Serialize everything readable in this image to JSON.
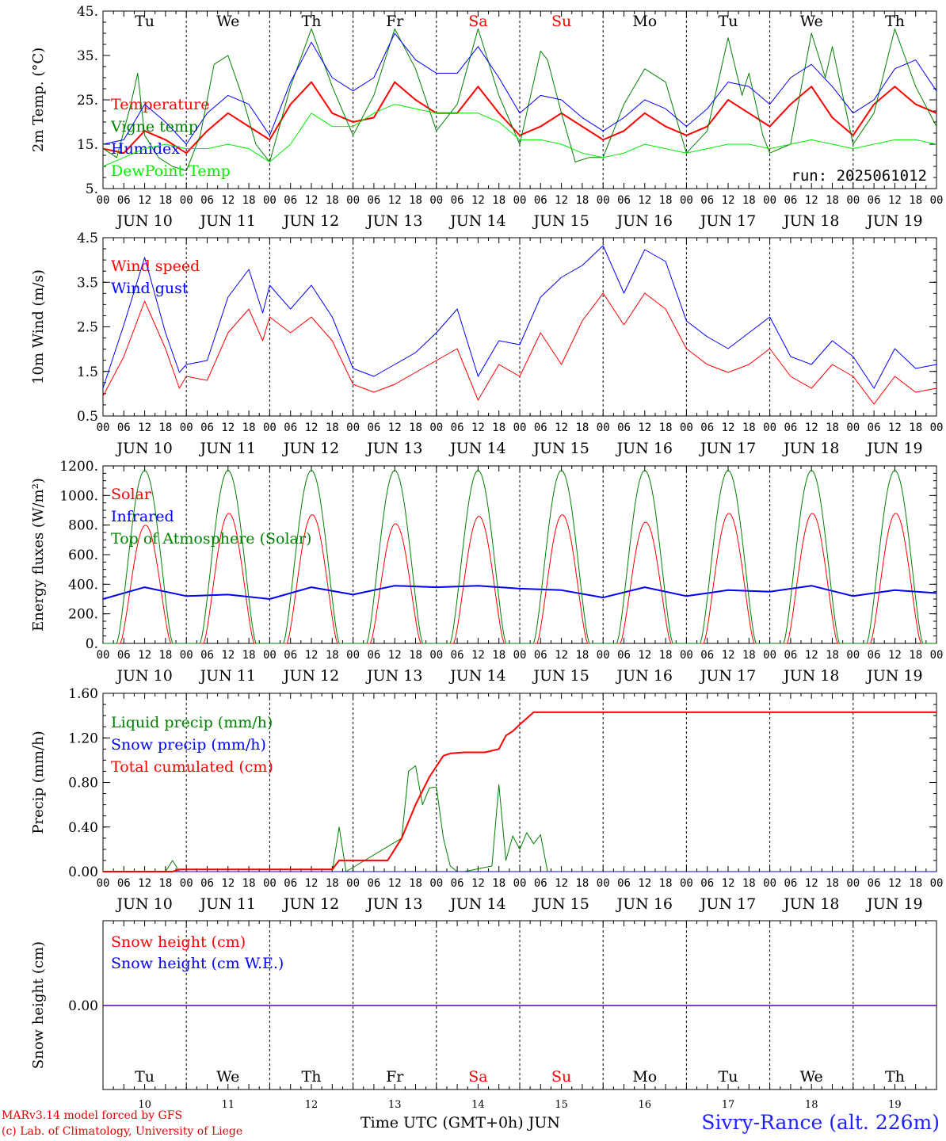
{
  "run_label": "run: 2025061012",
  "day_labels": [
    "Tu",
    "We",
    "Th",
    "Fr",
    "Sa",
    "Su",
    "Mo",
    "Tu",
    "We",
    "Th"
  ],
  "weekend_color": "#ff0000",
  "date_labels": [
    "JUN 10",
    "JUN 11",
    "JUN 12",
    "JUN 13",
    "JUN 14",
    "JUN 15",
    "JUN 16",
    "JUN 17",
    "JUN 18",
    "JUN 19"
  ],
  "hour_ticks": [
    "00",
    "06",
    "12",
    "18"
  ],
  "last_hour_tick": "00",
  "bottom_day_numbers": [
    "10",
    "11",
    "12",
    "13",
    "14",
    "15",
    "16",
    "17",
    "18",
    "19"
  ],
  "footer": {
    "model_line": "MARv3.14 model forced by GFS",
    "lab_line": "(c) Lab. of Climatology, University of Liege",
    "time_axis": "Time UTC (GMT+0h) JUN",
    "station": "Sivry-Rance (alt. 226m)"
  },
  "chart_data": [
    {
      "id": "temperature",
      "type": "line",
      "ylabel": "2m Temp. (°C)",
      "ylim": [
        5,
        45
      ],
      "yticks": [
        "5.",
        "15.",
        "25.",
        "35.",
        "45."
      ],
      "x_unit": "hours since 2025-06-10 00 UTC",
      "series": [
        {
          "name": "Temperature",
          "color": "#ff0000",
          "width": 2,
          "x": [
            0,
            6,
            12,
            18,
            24,
            30,
            36,
            42,
            48,
            54,
            60,
            66,
            72,
            78,
            84,
            90,
            96,
            102,
            108,
            114,
            120,
            126,
            132,
            138,
            144,
            150,
            156,
            162,
            168,
            174,
            180,
            186,
            192,
            198,
            204,
            210,
            216,
            222,
            228,
            234,
            240
          ],
          "values": [
            14,
            13,
            18,
            16,
            13,
            18,
            22,
            19,
            16,
            24,
            29,
            22,
            20,
            21,
            29,
            25,
            22,
            22,
            28,
            22,
            17,
            19,
            22,
            19,
            16,
            18,
            22,
            19,
            17,
            19,
            25,
            22,
            19,
            24,
            28,
            21,
            17,
            24,
            28,
            24,
            22
          ]
        },
        {
          "name": "Vigne temp",
          "color": "#008000",
          "width": 1,
          "x": [
            0,
            4,
            8,
            10,
            12,
            16,
            20,
            24,
            28,
            32,
            36,
            40,
            44,
            48,
            54,
            60,
            66,
            72,
            78,
            84,
            90,
            96,
            102,
            108,
            114,
            120,
            126,
            128,
            132,
            136,
            140,
            144,
            150,
            156,
            162,
            168,
            174,
            180,
            184,
            186,
            190,
            192,
            198,
            204,
            208,
            210,
            216,
            222,
            228,
            234,
            240
          ],
          "values": [
            14,
            12,
            24,
            31,
            17,
            12,
            10,
            9,
            17,
            33,
            35,
            26,
            15,
            11,
            28,
            41,
            28,
            17,
            26,
            41,
            32,
            18,
            24,
            41,
            26,
            15,
            36,
            34,
            22,
            11,
            12,
            12,
            24,
            32,
            29,
            13,
            18,
            39,
            26,
            31,
            17,
            13,
            15,
            40,
            30,
            37,
            15,
            22,
            41,
            28,
            19
          ]
        },
        {
          "name": "Humidex",
          "color": "#0000ff",
          "width": 1,
          "x": [
            0,
            6,
            12,
            18,
            24,
            30,
            36,
            42,
            48,
            54,
            60,
            66,
            72,
            78,
            84,
            90,
            96,
            102,
            108,
            114,
            120,
            126,
            132,
            138,
            144,
            150,
            156,
            162,
            168,
            174,
            180,
            186,
            192,
            198,
            204,
            210,
            216,
            222,
            228,
            234,
            240
          ],
          "values": [
            15,
            16,
            24,
            20,
            15,
            22,
            26,
            24,
            17,
            29,
            38,
            30,
            27,
            30,
            40,
            34,
            31,
            31,
            37,
            30,
            22,
            26,
            25,
            21,
            18,
            21,
            25,
            23,
            19,
            23,
            29,
            28,
            24,
            30,
            33,
            28,
            22,
            25,
            32,
            34,
            27
          ]
        },
        {
          "name": "DewPoint Temp",
          "color": "#00ee00",
          "width": 1,
          "x": [
            0,
            6,
            12,
            18,
            24,
            30,
            36,
            42,
            48,
            54,
            60,
            66,
            72,
            78,
            84,
            90,
            96,
            102,
            108,
            114,
            120,
            126,
            132,
            138,
            144,
            150,
            156,
            162,
            168,
            174,
            180,
            186,
            192,
            198,
            204,
            210,
            216,
            222,
            228,
            234,
            240
          ],
          "values": [
            10,
            12,
            14,
            15,
            14,
            14,
            15,
            14,
            11,
            15,
            22,
            19,
            19,
            22,
            24,
            23,
            22,
            22,
            22,
            20,
            16,
            16,
            15,
            13,
            12,
            13,
            15,
            14,
            13,
            14,
            15,
            15,
            14,
            15,
            16,
            15,
            14,
            15,
            16,
            16,
            15
          ]
        }
      ]
    },
    {
      "id": "wind",
      "type": "line",
      "ylabel": "10m Wind (m/s)",
      "ylim": [
        0.5,
        5
      ],
      "yticks": [
        "0.5",
        "1.5",
        "2.5",
        "3.5",
        "4.5"
      ],
      "x_unit": "hours since 2025-06-10 00 UTC",
      "series": [
        {
          "name": "Wind speed",
          "color": "#ff0000",
          "width": 1,
          "x": [
            0,
            6,
            12,
            18,
            22,
            24,
            30,
            36,
            42,
            46,
            48,
            54,
            60,
            66,
            72,
            78,
            84,
            90,
            96,
            102,
            108,
            114,
            120,
            126,
            132,
            138,
            144,
            150,
            156,
            162,
            168,
            174,
            180,
            186,
            192,
            198,
            204,
            210,
            216,
            222,
            228,
            234,
            240
          ],
          "values": [
            1.0,
            2.0,
            3.4,
            2.2,
            1.2,
            1.5,
            1.4,
            2.6,
            3.2,
            2.4,
            3.0,
            2.6,
            3.0,
            2.4,
            1.3,
            1.1,
            1.3,
            1.6,
            1.9,
            2.2,
            0.9,
            1.8,
            1.5,
            2.6,
            1.8,
            2.9,
            3.6,
            2.8,
            3.6,
            3.2,
            2.2,
            1.8,
            1.6,
            1.8,
            2.2,
            1.5,
            1.2,
            1.8,
            1.5,
            0.8,
            1.5,
            1.1,
            1.2
          ]
        },
        {
          "name": "Wind gust",
          "color": "#0000ff",
          "width": 1,
          "x": [
            0,
            6,
            12,
            18,
            22,
            24,
            30,
            36,
            42,
            46,
            48,
            54,
            60,
            66,
            72,
            78,
            84,
            90,
            96,
            102,
            108,
            114,
            120,
            126,
            132,
            138,
            144,
            150,
            156,
            162,
            168,
            174,
            180,
            186,
            192,
            198,
            204,
            210,
            216,
            222,
            228,
            234,
            240
          ],
          "values": [
            1.2,
            2.8,
            4.5,
            2.6,
            1.6,
            1.8,
            1.9,
            3.5,
            4.2,
            3.1,
            3.8,
            3.2,
            3.8,
            3.0,
            1.7,
            1.5,
            1.8,
            2.1,
            2.6,
            3.2,
            1.5,
            2.4,
            2.3,
            3.5,
            4.0,
            4.3,
            4.8,
            3.6,
            4.7,
            4.4,
            2.9,
            2.5,
            2.2,
            2.6,
            3.0,
            2.0,
            1.8,
            2.4,
            2.0,
            1.2,
            2.2,
            1.7,
            1.8
          ]
        }
      ]
    },
    {
      "id": "energy",
      "type": "line",
      "ylabel": "Energy fluxes (W/m²)",
      "ylim": [
        0,
        1200
      ],
      "yticks": [
        "0.",
        "200.",
        "400.",
        "600.",
        "800.",
        "1000.",
        "1200."
      ],
      "x_unit": "hours since 2025-06-10 00 UTC",
      "series": [
        {
          "name": "Solar",
          "color": "#ff0000",
          "width": 1,
          "kind": "solar",
          "peaks": [
            800,
            880,
            870,
            810,
            860,
            870,
            820,
            880,
            880,
            880
          ]
        },
        {
          "name": "Infrared",
          "color": "#0000ff",
          "width": 2,
          "x": [
            0,
            12,
            24,
            36,
            48,
            60,
            72,
            84,
            96,
            108,
            120,
            132,
            144,
            156,
            168,
            180,
            192,
            204,
            216,
            228,
            240
          ],
          "values": [
            300,
            380,
            320,
            330,
            300,
            380,
            330,
            390,
            380,
            390,
            370,
            360,
            310,
            380,
            320,
            360,
            350,
            390,
            320,
            360,
            340
          ]
        },
        {
          "name": "Top of Atmosphere (Solar)",
          "color": "#008000",
          "width": 1,
          "kind": "toa",
          "peaks": [
            1170,
            1170,
            1170,
            1170,
            1170,
            1170,
            1170,
            1170,
            1170,
            1170
          ]
        }
      ]
    },
    {
      "id": "precip",
      "type": "line",
      "ylabel": "Precip (mm/h)",
      "ylim": [
        0,
        1.6
      ],
      "yticks": [
        "0.00",
        "0.40",
        "0.80",
        "1.20",
        "1.60"
      ],
      "x_unit": "hours since 2025-06-10 00 UTC",
      "series": [
        {
          "name": "Liquid precip (mm/h)",
          "color": "#008000",
          "width": 1,
          "x": [
            0,
            18,
            20,
            22,
            66,
            68,
            70,
            86,
            88,
            90,
            92,
            94,
            96,
            98,
            100,
            102,
            104,
            112,
            114,
            116,
            118,
            120,
            122,
            124,
            126,
            128,
            130,
            132,
            134,
            136,
            138,
            140,
            142,
            240
          ],
          "values": [
            0,
            0,
            0.1,
            0,
            0,
            0.4,
            0,
            0.3,
            0.9,
            0.95,
            0.6,
            0.75,
            0.76,
            0.3,
            0.05,
            0,
            0,
            0.05,
            0.78,
            0.1,
            0.32,
            0.2,
            0.35,
            0.25,
            0.33,
            0,
            0,
            0,
            0,
            0,
            0,
            0,
            0,
            0
          ]
        },
        {
          "name": "Snow precip (mm/h)",
          "color": "#0000ff",
          "width": 1,
          "x": [
            0,
            240
          ],
          "values": [
            0,
            0
          ]
        },
        {
          "name": "Total cumulated (cm)",
          "color": "#ff0000",
          "width": 2,
          "x": [
            0,
            20,
            22,
            66,
            68,
            70,
            82,
            86,
            90,
            94,
            98,
            100,
            104,
            110,
            114,
            116,
            118,
            120,
            124,
            240
          ],
          "values": [
            0,
            0,
            0.02,
            0.02,
            0.1,
            0.1,
            0.1,
            0.3,
            0.6,
            0.85,
            1.04,
            1.06,
            1.07,
            1.07,
            1.1,
            1.22,
            1.26,
            1.32,
            1.43,
            1.43
          ]
        }
      ]
    },
    {
      "id": "snow",
      "type": "line",
      "ylabel": "Snow height (cm)",
      "ylim": [
        -1,
        1
      ],
      "yticks": [
        "0.00"
      ],
      "x_unit": "hours since 2025-06-10 00 UTC",
      "series": [
        {
          "name": "Snow height (cm)",
          "color": "#ff0000",
          "width": 1.5,
          "x": [
            0,
            240
          ],
          "values": [
            0,
            0
          ]
        },
        {
          "name": "Snow height (cm W.E.)",
          "color": "#0000ff",
          "width": 1,
          "x": [
            0,
            240
          ],
          "values": [
            0,
            0
          ]
        }
      ]
    }
  ]
}
